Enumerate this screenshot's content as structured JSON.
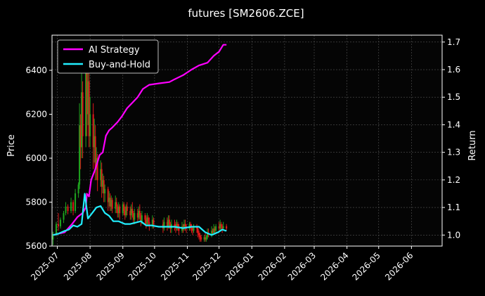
{
  "chart_data": {
    "type": "line",
    "title": "futures [SM2606.ZCE]",
    "ylabel_left": "Price",
    "ylabel_right": "Return",
    "grid": true,
    "legend_placement": "top-left",
    "ylim_left": [
      5600,
      6560
    ],
    "ylim_right": [
      0.96,
      1.725
    ],
    "xlim": [
      "2025-06-26",
      "2026-06-30"
    ],
    "x_ticks": [
      "2025-07",
      "2025-08",
      "2025-09",
      "2025-10",
      "2025-11",
      "2025-12",
      "2026-01",
      "2026-02",
      "2026-03",
      "2026-04",
      "2026-05",
      "2026-06"
    ],
    "y_ticks_left": [
      5600,
      5800,
      6000,
      6200,
      6400
    ],
    "y_ticks_right": [
      1.0,
      1.1,
      1.2,
      1.3,
      1.4,
      1.5,
      1.6,
      1.7
    ],
    "colors": {
      "background": "#000000",
      "plot_background": "#050505",
      "up_candle": "#1fa51f",
      "down_candle": "#e01a1a",
      "ai_strategy": "#ff00ff",
      "buy_and_hold": "#22eeff",
      "grid": "#555555"
    },
    "series": [
      {
        "name": "AI Strategy",
        "axis": "right",
        "points": [
          [
            "2025-06-27",
            1.0
          ],
          [
            "2025-07-02",
            1.005
          ],
          [
            "2025-07-08",
            1.01
          ],
          [
            "2025-07-15",
            1.04
          ],
          [
            "2025-07-20",
            1.065
          ],
          [
            "2025-07-25",
            1.08
          ],
          [
            "2025-07-28",
            1.1
          ],
          [
            "2025-07-29",
            1.15
          ],
          [
            "2025-07-31",
            1.14
          ],
          [
            "2025-08-02",
            1.2
          ],
          [
            "2025-08-06",
            1.24
          ],
          [
            "2025-08-10",
            1.29
          ],
          [
            "2025-08-13",
            1.3
          ],
          [
            "2025-08-16",
            1.36
          ],
          [
            "2025-08-19",
            1.38
          ],
          [
            "2025-08-22",
            1.39
          ],
          [
            "2025-08-27",
            1.41
          ],
          [
            "2025-08-31",
            1.43
          ],
          [
            "2025-09-05",
            1.46
          ],
          [
            "2025-09-10",
            1.48
          ],
          [
            "2025-09-15",
            1.5
          ],
          [
            "2025-09-20",
            1.53
          ],
          [
            "2025-09-26",
            1.545
          ],
          [
            "2025-10-05",
            1.55
          ],
          [
            "2025-10-15",
            1.555
          ],
          [
            "2025-10-20",
            1.565
          ],
          [
            "2025-10-28",
            1.58
          ],
          [
            "2025-11-05",
            1.6
          ],
          [
            "2025-11-12",
            1.615
          ],
          [
            "2025-11-20",
            1.625
          ],
          [
            "2025-11-26",
            1.65
          ],
          [
            "2025-12-01",
            1.665
          ],
          [
            "2025-12-05",
            1.69
          ],
          [
            "2025-12-08",
            1.69
          ]
        ]
      },
      {
        "name": "Buy-and-Hold",
        "axis": "right",
        "points": [
          [
            "2025-06-27",
            1.0
          ],
          [
            "2025-07-02",
            1.005
          ],
          [
            "2025-07-08",
            1.015
          ],
          [
            "2025-07-12",
            1.02
          ],
          [
            "2025-07-16",
            1.035
          ],
          [
            "2025-07-20",
            1.03
          ],
          [
            "2025-07-24",
            1.04
          ],
          [
            "2025-07-27",
            1.15
          ],
          [
            "2025-07-30",
            1.06
          ],
          [
            "2025-08-03",
            1.08
          ],
          [
            "2025-08-07",
            1.1
          ],
          [
            "2025-08-11",
            1.105
          ],
          [
            "2025-08-15",
            1.08
          ],
          [
            "2025-08-19",
            1.07
          ],
          [
            "2025-08-23",
            1.05
          ],
          [
            "2025-08-28",
            1.05
          ],
          [
            "2025-09-03",
            1.04
          ],
          [
            "2025-09-08",
            1.04
          ],
          [
            "2025-09-13",
            1.045
          ],
          [
            "2025-09-18",
            1.05
          ],
          [
            "2025-09-23",
            1.035
          ],
          [
            "2025-09-28",
            1.035
          ],
          [
            "2025-10-05",
            1.03
          ],
          [
            "2025-10-12",
            1.03
          ],
          [
            "2025-10-20",
            1.03
          ],
          [
            "2025-10-28",
            1.025
          ],
          [
            "2025-11-05",
            1.03
          ],
          [
            "2025-11-12",
            1.03
          ],
          [
            "2025-11-18",
            1.01
          ],
          [
            "2025-11-24",
            1.0
          ],
          [
            "2025-11-30",
            1.01
          ],
          [
            "2025-12-04",
            1.02
          ],
          [
            "2025-12-08",
            1.015
          ]
        ]
      }
    ],
    "candles": [
      [
        "2025-06-27",
        5630,
        5655,
        5605,
        5665
      ],
      [
        "2025-06-30",
        5655,
        5700,
        5645,
        5710
      ],
      [
        "2025-07-02",
        5700,
        5690,
        5670,
        5750
      ],
      [
        "2025-07-04",
        5690,
        5720,
        5680,
        5730
      ],
      [
        "2025-07-07",
        5720,
        5750,
        5705,
        5760
      ],
      [
        "2025-07-09",
        5750,
        5780,
        5740,
        5800
      ],
      [
        "2025-07-11",
        5780,
        5760,
        5745,
        5790
      ],
      [
        "2025-07-14",
        5760,
        5800,
        5750,
        5820
      ],
      [
        "2025-07-16",
        5800,
        5760,
        5740,
        5810
      ],
      [
        "2025-07-18",
        5760,
        5840,
        5750,
        5860
      ],
      [
        "2025-07-21",
        5840,
        5880,
        5820,
        5890
      ],
      [
        "2025-07-22",
        5880,
        6150,
        5860,
        6250
      ],
      [
        "2025-07-23",
        6150,
        6050,
        5950,
        6200
      ],
      [
        "2025-07-24",
        6050,
        6300,
        6000,
        6400
      ],
      [
        "2025-07-25",
        6300,
        6100,
        6000,
        6350
      ],
      [
        "2025-07-28",
        6100,
        6450,
        6050,
        6520
      ],
      [
        "2025-07-29",
        6450,
        6200,
        6100,
        6480
      ],
      [
        "2025-07-30",
        6200,
        6350,
        6150,
        6420
      ],
      [
        "2025-07-31",
        6350,
        6100,
        6050,
        6400
      ],
      [
        "2025-08-01",
        6100,
        6200,
        6050,
        6280
      ],
      [
        "2025-08-04",
        6200,
        6050,
        5950,
        6250
      ],
      [
        "2025-08-05",
        6050,
        6100,
        5980,
        6180
      ],
      [
        "2025-08-06",
        6100,
        5950,
        5900,
        6150
      ],
      [
        "2025-08-07",
        5950,
        6000,
        5900,
        6050
      ],
      [
        "2025-08-08",
        6000,
        5900,
        5850,
        6020
      ],
      [
        "2025-08-11",
        5900,
        5950,
        5870,
        5990
      ],
      [
        "2025-08-12",
        5950,
        5870,
        5820,
        5980
      ],
      [
        "2025-08-13",
        5870,
        5900,
        5840,
        5930
      ],
      [
        "2025-08-14",
        5900,
        5840,
        5800,
        5920
      ],
      [
        "2025-08-15",
        5840,
        5860,
        5800,
        5880
      ],
      [
        "2025-08-18",
        5860,
        5800,
        5760,
        5870
      ],
      [
        "2025-08-19",
        5800,
        5820,
        5780,
        5850
      ],
      [
        "2025-08-20",
        5820,
        5780,
        5760,
        5840
      ],
      [
        "2025-08-21",
        5780,
        5810,
        5760,
        5830
      ],
      [
        "2025-08-22",
        5810,
        5770,
        5750,
        5820
      ],
      [
        "2025-08-25",
        5770,
        5800,
        5750,
        5830
      ],
      [
        "2025-08-26",
        5800,
        5780,
        5750,
        5820
      ],
      [
        "2025-08-27",
        5780,
        5750,
        5730,
        5790
      ],
      [
        "2025-08-28",
        5750,
        5780,
        5730,
        5800
      ],
      [
        "2025-08-29",
        5780,
        5750,
        5720,
        5790
      ],
      [
        "2025-09-01",
        5750,
        5790,
        5740,
        5800
      ],
      [
        "2025-09-02",
        5790,
        5760,
        5740,
        5800
      ],
      [
        "2025-09-03",
        5760,
        5740,
        5720,
        5780
      ],
      [
        "2025-09-04",
        5740,
        5780,
        5730,
        5790
      ],
      [
        "2025-09-05",
        5780,
        5760,
        5740,
        5800
      ],
      [
        "2025-09-08",
        5760,
        5740,
        5720,
        5780
      ],
      [
        "2025-09-09",
        5740,
        5770,
        5720,
        5790
      ],
      [
        "2025-09-10",
        5770,
        5750,
        5730,
        5800
      ],
      [
        "2025-09-11",
        5750,
        5720,
        5700,
        5760
      ],
      [
        "2025-09-12",
        5720,
        5750,
        5700,
        5770
      ],
      [
        "2025-09-15",
        5750,
        5730,
        5710,
        5770
      ],
      [
        "2025-09-16",
        5730,
        5760,
        5720,
        5780
      ],
      [
        "2025-09-17",
        5760,
        5740,
        5720,
        5790
      ],
      [
        "2025-09-18",
        5740,
        5710,
        5690,
        5750
      ],
      [
        "2025-09-19",
        5710,
        5740,
        5700,
        5760
      ],
      [
        "2025-09-22",
        5740,
        5720,
        5700,
        5750
      ],
      [
        "2025-09-23",
        5720,
        5700,
        5680,
        5740
      ],
      [
        "2025-09-24",
        5700,
        5730,
        5690,
        5750
      ],
      [
        "2025-09-25",
        5730,
        5710,
        5690,
        5740
      ],
      [
        "2025-09-26",
        5710,
        5690,
        5670,
        5730
      ],
      [
        "2025-09-29",
        5690,
        5720,
        5680,
        5740
      ],
      [
        "2025-09-30",
        5720,
        5700,
        5680,
        5730
      ],
      [
        "2025-10-09",
        5700,
        5680,
        5660,
        5720
      ],
      [
        "2025-10-10",
        5680,
        5710,
        5670,
        5730
      ],
      [
        "2025-10-13",
        5710,
        5690,
        5670,
        5730
      ],
      [
        "2025-10-14",
        5690,
        5720,
        5680,
        5740
      ],
      [
        "2025-10-15",
        5720,
        5700,
        5680,
        5740
      ],
      [
        "2025-10-16",
        5700,
        5680,
        5660,
        5710
      ],
      [
        "2025-10-17",
        5680,
        5700,
        5660,
        5720
      ],
      [
        "2025-10-20",
        5700,
        5690,
        5670,
        5720
      ],
      [
        "2025-10-21",
        5690,
        5680,
        5660,
        5710
      ],
      [
        "2025-10-22",
        5680,
        5700,
        5670,
        5720
      ],
      [
        "2025-10-23",
        5700,
        5690,
        5670,
        5710
      ],
      [
        "2025-10-24",
        5690,
        5670,
        5650,
        5700
      ],
      [
        "2025-10-27",
        5670,
        5690,
        5660,
        5710
      ],
      [
        "2025-10-28",
        5690,
        5680,
        5660,
        5700
      ],
      [
        "2025-10-29",
        5680,
        5700,
        5670,
        5720
      ],
      [
        "2025-10-30",
        5700,
        5690,
        5670,
        5720
      ],
      [
        "2025-10-31",
        5690,
        5680,
        5660,
        5700
      ],
      [
        "2025-11-03",
        5680,
        5700,
        5670,
        5710
      ],
      [
        "2025-11-04",
        5700,
        5690,
        5670,
        5710
      ],
      [
        "2025-11-05",
        5690,
        5680,
        5660,
        5700
      ],
      [
        "2025-11-06",
        5680,
        5670,
        5650,
        5690
      ],
      [
        "2025-11-07",
        5670,
        5690,
        5660,
        5700
      ],
      [
        "2025-11-10",
        5690,
        5680,
        5660,
        5700
      ],
      [
        "2025-11-11",
        5680,
        5660,
        5640,
        5690
      ],
      [
        "2025-11-12",
        5660,
        5650,
        5630,
        5670
      ],
      [
        "2025-11-13",
        5650,
        5640,
        5620,
        5660
      ],
      [
        "2025-11-14",
        5640,
        5630,
        5620,
        5650
      ],
      [
        "2025-11-17",
        5630,
        5640,
        5620,
        5650
      ],
      [
        "2025-11-18",
        5640,
        5630,
        5620,
        5660
      ],
      [
        "2025-11-19",
        5630,
        5640,
        5620,
        5650
      ],
      [
        "2025-11-20",
        5640,
        5660,
        5630,
        5680
      ],
      [
        "2025-11-21",
        5660,
        5650,
        5640,
        5680
      ],
      [
        "2025-11-24",
        5650,
        5670,
        5640,
        5690
      ],
      [
        "2025-11-25",
        5670,
        5660,
        5650,
        5680
      ],
      [
        "2025-11-26",
        5660,
        5680,
        5650,
        5700
      ],
      [
        "2025-11-27",
        5680,
        5670,
        5660,
        5690
      ],
      [
        "2025-11-28",
        5670,
        5690,
        5660,
        5700
      ],
      [
        "2025-12-01",
        5690,
        5680,
        5670,
        5710
      ],
      [
        "2025-12-02",
        5680,
        5700,
        5670,
        5720
      ],
      [
        "2025-12-03",
        5700,
        5690,
        5670,
        5710
      ],
      [
        "2025-12-04",
        5690,
        5680,
        5660,
        5700
      ],
      [
        "2025-12-05",
        5680,
        5690,
        5670,
        5710
      ],
      [
        "2025-12-08",
        5690,
        5680,
        5670,
        5700
      ]
    ]
  }
}
